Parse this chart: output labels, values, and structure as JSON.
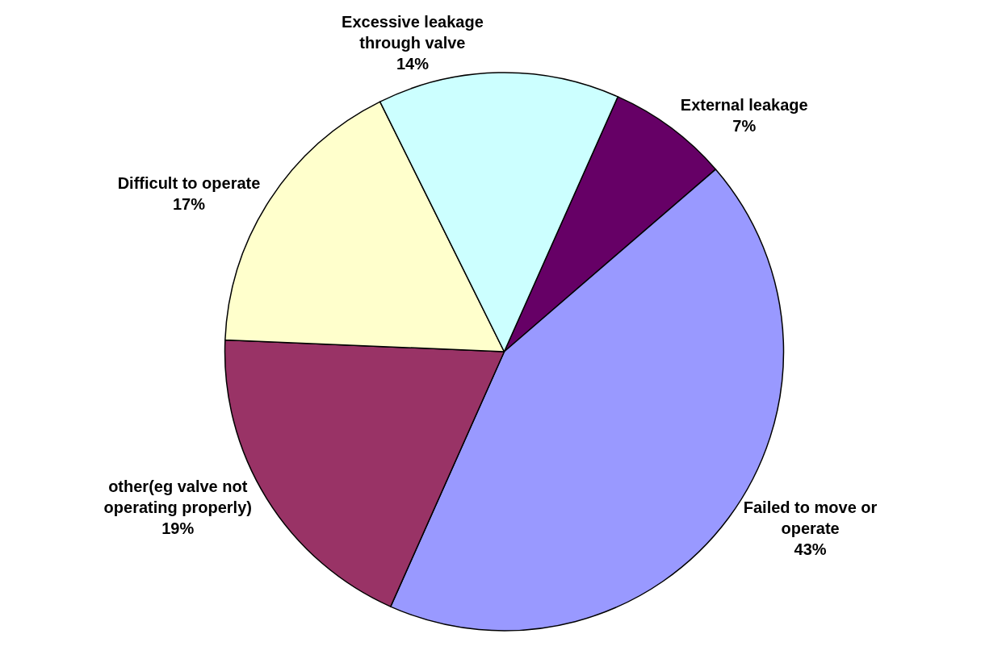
{
  "chart_data": {
    "type": "pie",
    "categories": [
      "External leakage",
      "Failed to move or\noperate",
      "other(eg valve not\noperating properly)",
      "Difficult to operate",
      "Excessive leakage\nthrough valve"
    ],
    "values": [
      7,
      43,
      19,
      17,
      14
    ],
    "value_labels": [
      "7%",
      "43%",
      "19%",
      "17%",
      "14%"
    ],
    "colors": [
      "#660066",
      "#9999ff",
      "#993366",
      "#ffffcc",
      "#ccffff"
    ],
    "legend": false
  }
}
